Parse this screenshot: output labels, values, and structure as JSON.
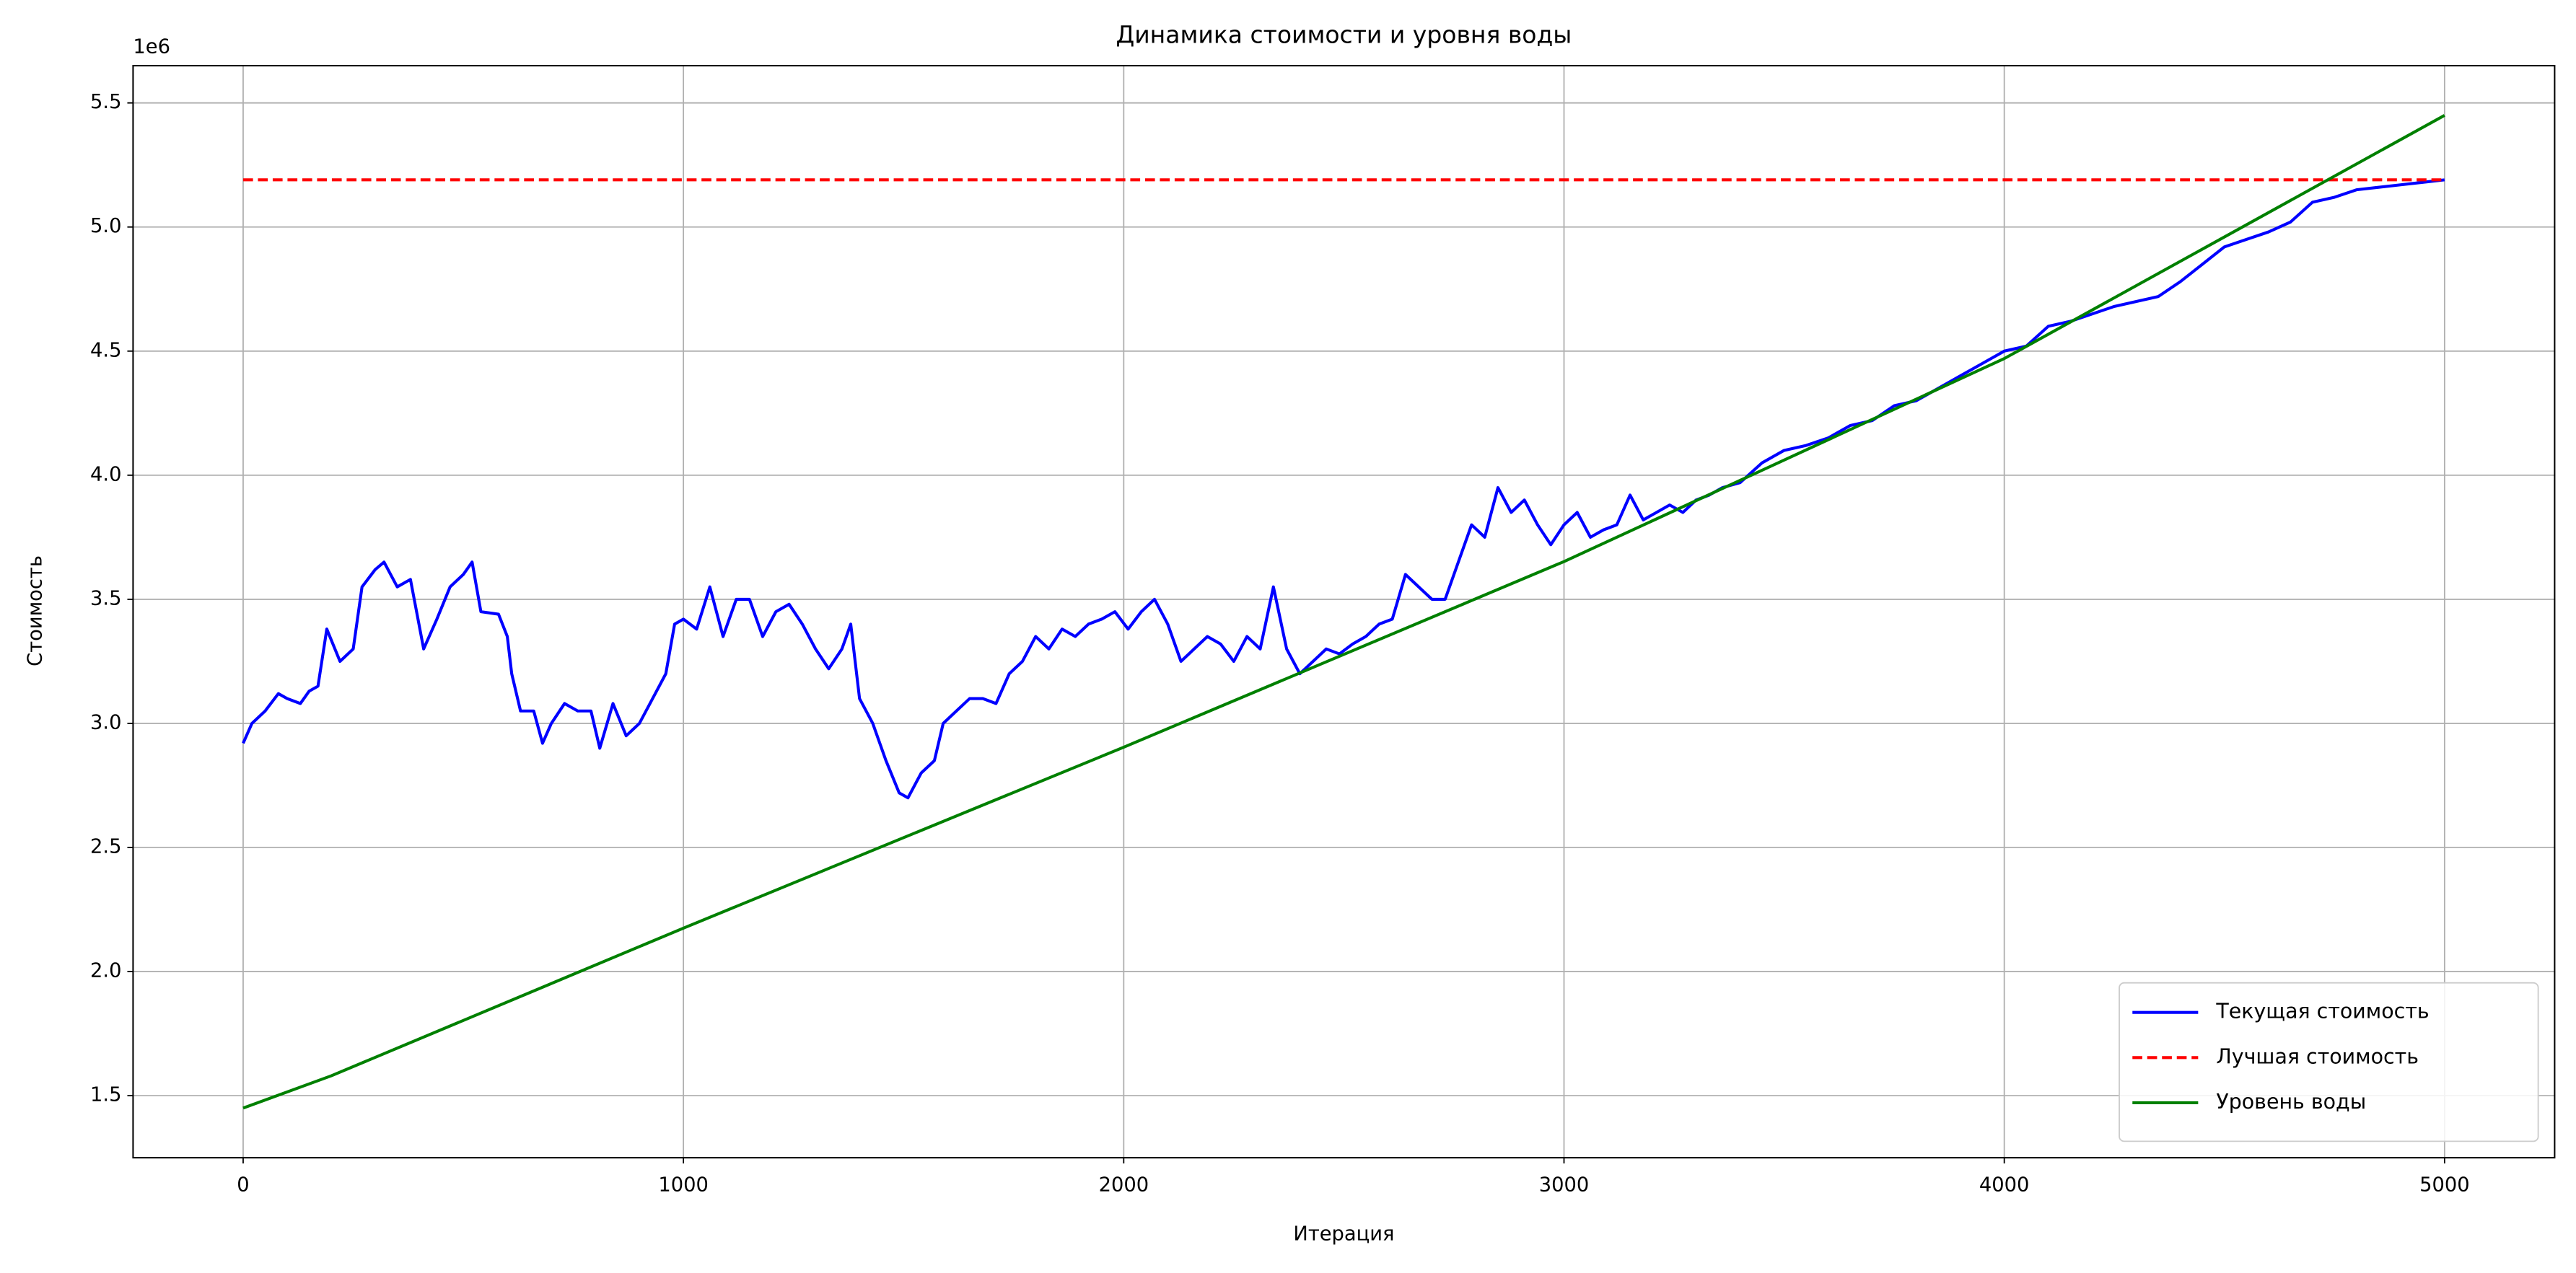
{
  "chart_data": {
    "type": "line",
    "title": "Динамика стоимости и уровня воды",
    "xlabel": "Итерация",
    "ylabel": "Стоимость",
    "y_offset_label": "1e6",
    "xlim": [
      -250,
      5250
    ],
    "xticks": [
      0,
      1000,
      2000,
      3000,
      4000,
      5000
    ],
    "ylim": [
      1250000,
      5650000
    ],
    "yticks": [
      {
        "value": 1500000,
        "label": "1.5"
      },
      {
        "value": 2000000,
        "label": "2.0"
      },
      {
        "value": 2500000,
        "label": "2.5"
      },
      {
        "value": 3000000,
        "label": "3.0"
      },
      {
        "value": 3500000,
        "label": "3.5"
      },
      {
        "value": 4000000,
        "label": "4.0"
      },
      {
        "value": 4500000,
        "label": "4.5"
      },
      {
        "value": 5000000,
        "label": "5.0"
      },
      {
        "value": 5500000,
        "label": "5.5"
      }
    ],
    "grid": true,
    "legend": "lower right",
    "series": [
      {
        "name": "Текущая стоимость",
        "color": "#0000ff",
        "style": "solid",
        "x": [
          0,
          20,
          50,
          80,
          100,
          130,
          150,
          170,
          190,
          220,
          250,
          270,
          300,
          320,
          350,
          380,
          410,
          440,
          470,
          500,
          520,
          540,
          580,
          600,
          610,
          630,
          660,
          680,
          700,
          730,
          760,
          790,
          810,
          840,
          870,
          900,
          930,
          960,
          980,
          1000,
          1030,
          1060,
          1090,
          1120,
          1150,
          1180,
          1210,
          1240,
          1270,
          1300,
          1330,
          1360,
          1380,
          1400,
          1430,
          1460,
          1490,
          1510,
          1540,
          1570,
          1590,
          1620,
          1650,
          1680,
          1710,
          1740,
          1770,
          1800,
          1830,
          1860,
          1890,
          1920,
          1950,
          1980,
          2010,
          2040,
          2070,
          2100,
          2130,
          2160,
          2190,
          2220,
          2250,
          2280,
          2310,
          2340,
          2370,
          2400,
          2430,
          2460,
          2490,
          2520,
          2550,
          2580,
          2610,
          2640,
          2670,
          2700,
          2730,
          2760,
          2790,
          2820,
          2850,
          2880,
          2910,
          2940,
          2970,
          3000,
          3030,
          3060,
          3090,
          3120,
          3150,
          3180,
          3210,
          3240,
          3270,
          3300,
          3330,
          3360,
          3400,
          3450,
          3500,
          3550,
          3600,
          3650,
          3700,
          3750,
          3800,
          3850,
          3900,
          3950,
          4000,
          4050,
          4100,
          4150,
          4200,
          4250,
          4300,
          4350,
          4400,
          4450,
          4500,
          4550,
          4600,
          4650,
          4700,
          4750,
          4800,
          4850,
          4900,
          4950,
          5000
        ],
        "values": [
          2920000,
          3000000,
          3050000,
          3120000,
          3100000,
          3080000,
          3130000,
          3150000,
          3380000,
          3250000,
          3300000,
          3550000,
          3620000,
          3650000,
          3550000,
          3580000,
          3300000,
          3420000,
          3550000,
          3600000,
          3650000,
          3450000,
          3440000,
          3350000,
          3200000,
          3050000,
          3050000,
          2920000,
          3000000,
          3080000,
          3050000,
          3050000,
          2900000,
          3080000,
          2950000,
          3000000,
          3100000,
          3200000,
          3400000,
          3420000,
          3380000,
          3550000,
          3350000,
          3500000,
          3500000,
          3350000,
          3450000,
          3480000,
          3400000,
          3300000,
          3220000,
          3300000,
          3400000,
          3100000,
          3000000,
          2850000,
          2720000,
          2700000,
          2800000,
          2850000,
          3000000,
          3050000,
          3100000,
          3100000,
          3080000,
          3200000,
          3250000,
          3350000,
          3300000,
          3380000,
          3350000,
          3400000,
          3420000,
          3450000,
          3380000,
          3450000,
          3500000,
          3400000,
          3250000,
          3300000,
          3350000,
          3320000,
          3250000,
          3350000,
          3300000,
          3550000,
          3300000,
          3200000,
          3250000,
          3300000,
          3280000,
          3320000,
          3350000,
          3400000,
          3420000,
          3600000,
          3550000,
          3500000,
          3500000,
          3650000,
          3800000,
          3750000,
          3950000,
          3850000,
          3900000,
          3800000,
          3720000,
          3800000,
          3850000,
          3750000,
          3780000,
          3800000,
          3920000,
          3820000,
          3850000,
          3880000,
          3850000,
          3900000,
          3920000,
          3950000,
          3970000,
          4050000,
          4100000,
          4120000,
          4150000,
          4200000,
          4220000,
          4280000,
          4300000,
          4350000,
          4400000,
          4450000,
          4500000,
          4520000,
          4600000,
          4620000,
          4650000,
          4680000,
          4700000,
          4720000,
          4780000,
          4850000,
          4920000,
          4950000,
          4980000,
          5020000,
          5100000,
          5120000,
          5150000,
          5160000,
          5170000,
          5180000,
          5190000
        ]
      },
      {
        "name": "Лучшая стоимость",
        "color": "#ff0000",
        "style": "dashed",
        "x": [
          0,
          5000
        ],
        "values": [
          5190000,
          5190000
        ]
      },
      {
        "name": "Уровень воды",
        "color": "#008000",
        "style": "solid",
        "x": [
          0,
          200,
          1000,
          2000,
          3000,
          4000,
          5000
        ],
        "values": [
          1450000,
          1580000,
          2175000,
          2904000,
          3652000,
          4470000,
          5450000
        ]
      }
    ]
  }
}
